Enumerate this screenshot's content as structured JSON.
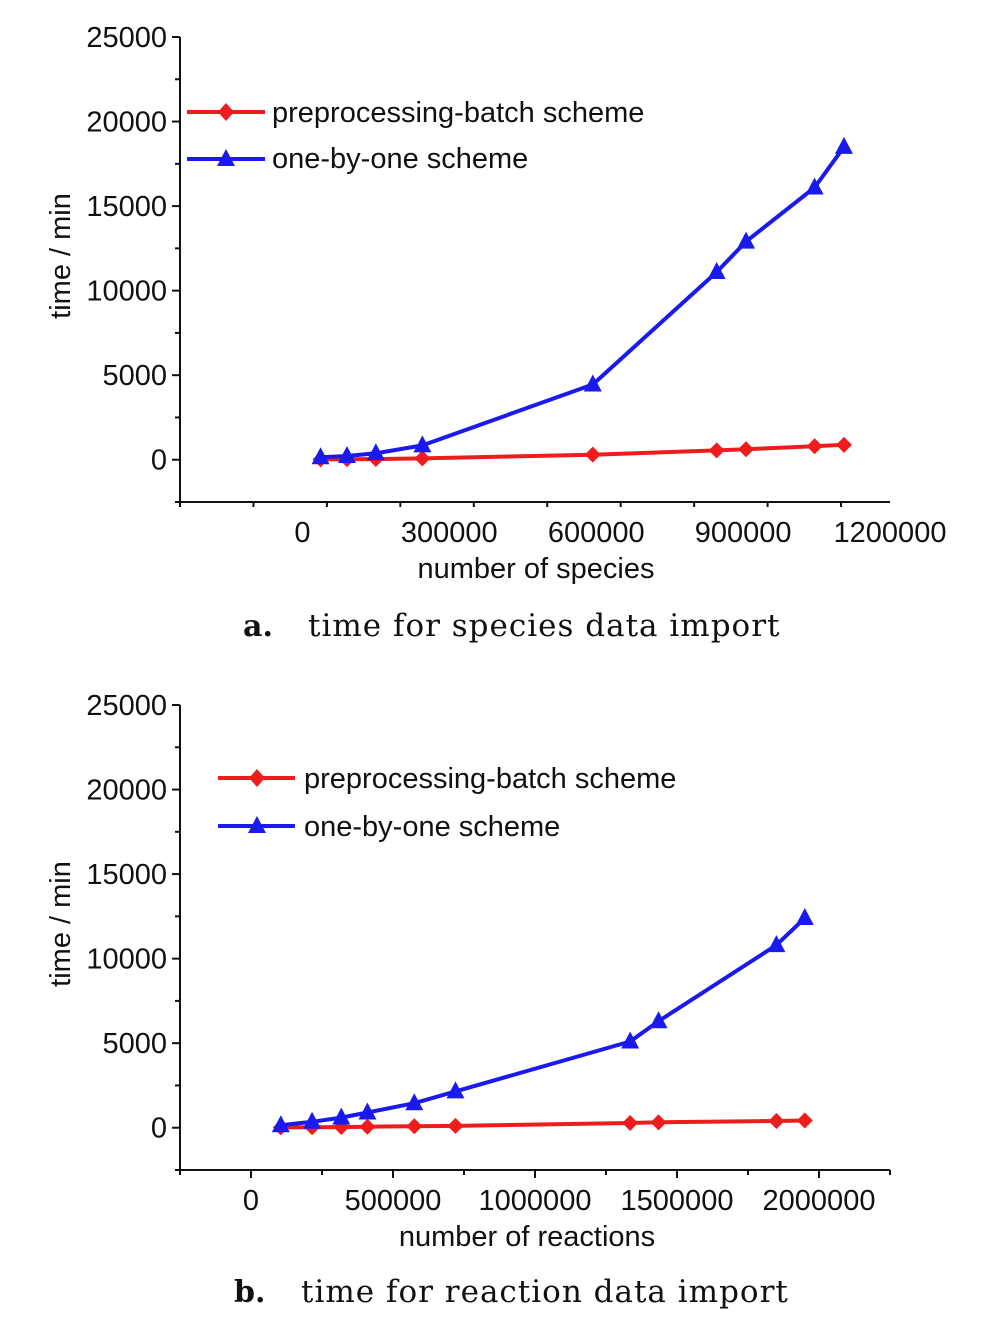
{
  "chart_data": [
    {
      "type": "line",
      "id": "a",
      "caption_letter": "a.",
      "caption_text": "time for species data import",
      "xlabel": "number of species",
      "ylabel": "time / min",
      "xlim": [
        -250000,
        1200000
      ],
      "ylim": [
        -2500,
        25000
      ],
      "xticks": [
        0,
        300000,
        600000,
        900000,
        1200000
      ],
      "xtick_labels": [
        "0",
        "300000",
        "600000",
        "900000",
        "1200000"
      ],
      "yticks": [
        0,
        5000,
        10000,
        15000,
        20000,
        25000
      ],
      "ytick_labels": [
        "0",
        "5000",
        "10000",
        "15000",
        "20000",
        "25000"
      ],
      "legend_position": "top-left",
      "series": [
        {
          "name": "preprocessing-batch scheme",
          "color": "#ee1c1c",
          "marker": "diamond",
          "x": [
            37000,
            91000,
            150000,
            245000,
            593000,
            846000,
            906000,
            1046000,
            1106000
          ],
          "y": [
            20,
            30,
            40,
            80,
            300,
            550,
            620,
            800,
            880
          ]
        },
        {
          "name": "one-by-one scheme",
          "color": "#1a1aee",
          "marker": "triangle",
          "x": [
            37000,
            91000,
            150000,
            245000,
            593000,
            846000,
            906000,
            1046000,
            1106000
          ],
          "y": [
            150,
            220,
            380,
            850,
            4450,
            11100,
            12900,
            16100,
            18500
          ]
        }
      ]
    },
    {
      "type": "line",
      "id": "b",
      "caption_letter": "b.",
      "caption_text": "time for reaction data import",
      "xlabel": "number of reactions",
      "ylabel": "time / min",
      "xlim": [
        -250000,
        2250000
      ],
      "ylim": [
        -2500,
        25000
      ],
      "xticks": [
        0,
        500000,
        1000000,
        1500000,
        2000000
      ],
      "xtick_labels": [
        "0",
        "500000",
        "1000000",
        "1500000",
        "2000000"
      ],
      "yticks": [
        0,
        5000,
        10000,
        15000,
        20000,
        25000
      ],
      "ytick_labels": [
        "0",
        "5000",
        "10000",
        "15000",
        "20000",
        "25000"
      ],
      "legend_position": "top-left",
      "series": [
        {
          "name": "preprocessing-batch scheme",
          "color": "#ee1c1c",
          "marker": "diamond",
          "x": [
            105000,
            215000,
            318000,
            410000,
            575000,
            720000,
            1335000,
            1435000,
            1850000,
            1950000
          ],
          "y": [
            20,
            30,
            40,
            60,
            90,
            110,
            280,
            320,
            400,
            430
          ]
        },
        {
          "name": "one-by-one scheme",
          "color": "#1a1aee",
          "marker": "triangle",
          "x": [
            105000,
            215000,
            318000,
            410000,
            575000,
            720000,
            1335000,
            1435000,
            1850000,
            1950000
          ],
          "y": [
            150,
            350,
            600,
            900,
            1450,
            2150,
            5100,
            6300,
            10800,
            12400
          ]
        }
      ]
    }
  ]
}
